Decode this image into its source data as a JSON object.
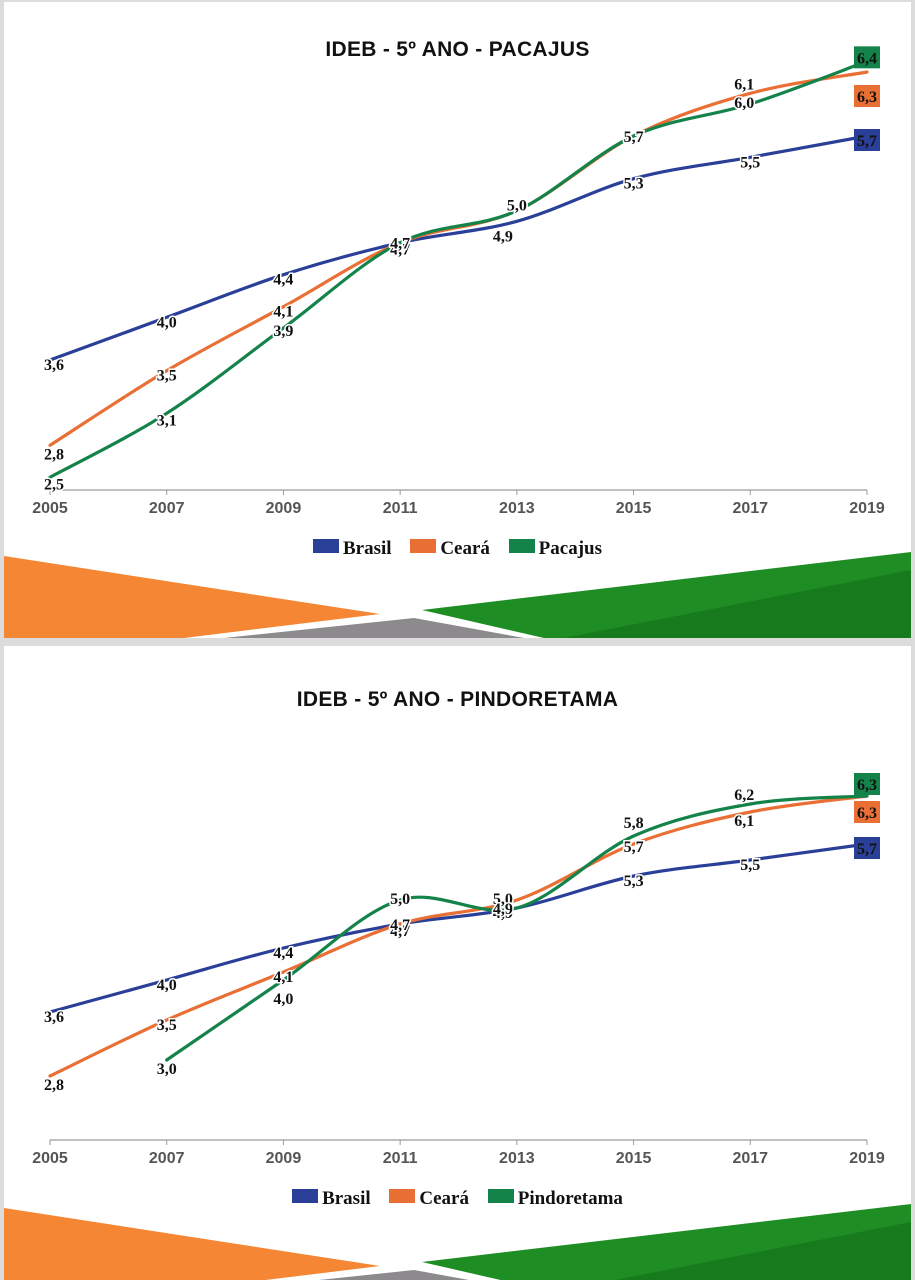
{
  "colors": {
    "brasil": "#2a3f98",
    "ceara": "#e96f34",
    "municipio": "#14834a",
    "axis": "#9a9a9a"
  },
  "chart_data": [
    {
      "type": "line",
      "title": "IDEB -  5º ANO - PACAJUS",
      "x": [
        "2005",
        "2007",
        "2009",
        "2011",
        "2013",
        "2015",
        "2017",
        "2019"
      ],
      "ylim": [
        2.0,
        7.0
      ],
      "series": [
        {
          "name": "Brasil",
          "key": "brasil",
          "values": [
            3.6,
            4.0,
            4.4,
            4.7,
            4.9,
            5.3,
            5.5,
            5.7
          ],
          "labels": [
            "3,6",
            "4,0",
            "4,4",
            "4,7",
            "4,9",
            "5,3",
            "5,5",
            "5,7"
          ]
        },
        {
          "name": "Ceará",
          "key": "ceara",
          "values": [
            2.8,
            3.5,
            4.1,
            4.7,
            5.0,
            5.7,
            6.1,
            6.3
          ],
          "labels": [
            "2,8",
            "3,5",
            "4,1",
            "4,7",
            "5,0",
            "5,7",
            "6,1",
            "6,3"
          ]
        },
        {
          "name": "Pacajus",
          "key": "municipio",
          "values": [
            2.5,
            3.1,
            3.9,
            4.7,
            5.0,
            5.7,
            6.0,
            6.4
          ],
          "labels": [
            "2,5",
            "3,1",
            "3,9",
            "4,7",
            "5,0",
            "5,7",
            "6,0",
            "6,4"
          ]
        }
      ]
    },
    {
      "type": "line",
      "title": "IDEB -  5º ANO - PINDORETAMA",
      "x": [
        "2005",
        "2007",
        "2009",
        "2011",
        "2013",
        "2015",
        "2017",
        "2019"
      ],
      "ylim": [
        2.0,
        7.0
      ],
      "series": [
        {
          "name": "Brasil",
          "key": "brasil",
          "values": [
            3.6,
            4.0,
            4.4,
            4.7,
            4.9,
            5.3,
            5.5,
            5.7
          ],
          "labels": [
            "3,6",
            "4,0",
            "4,4",
            "4,7",
            "4,9",
            "5,3",
            "5,5",
            "5,7"
          ]
        },
        {
          "name": "Ceará",
          "key": "ceara",
          "values": [
            2.8,
            3.5,
            4.1,
            4.7,
            5.0,
            5.7,
            6.1,
            6.3
          ],
          "labels": [
            "2,8",
            "3,5",
            "4,1",
            "4,7",
            "5,0",
            "5,7",
            "6,1",
            "6,3"
          ]
        },
        {
          "name": "Pindoretama",
          "key": "municipio",
          "values": [
            null,
            3.0,
            4.0,
            5.0,
            4.9,
            5.8,
            6.2,
            6.3
          ],
          "labels": [
            null,
            "3,0",
            "4,0",
            "5,0",
            "4,9",
            "5,8",
            "6,2",
            "6,3"
          ]
        }
      ]
    }
  ]
}
